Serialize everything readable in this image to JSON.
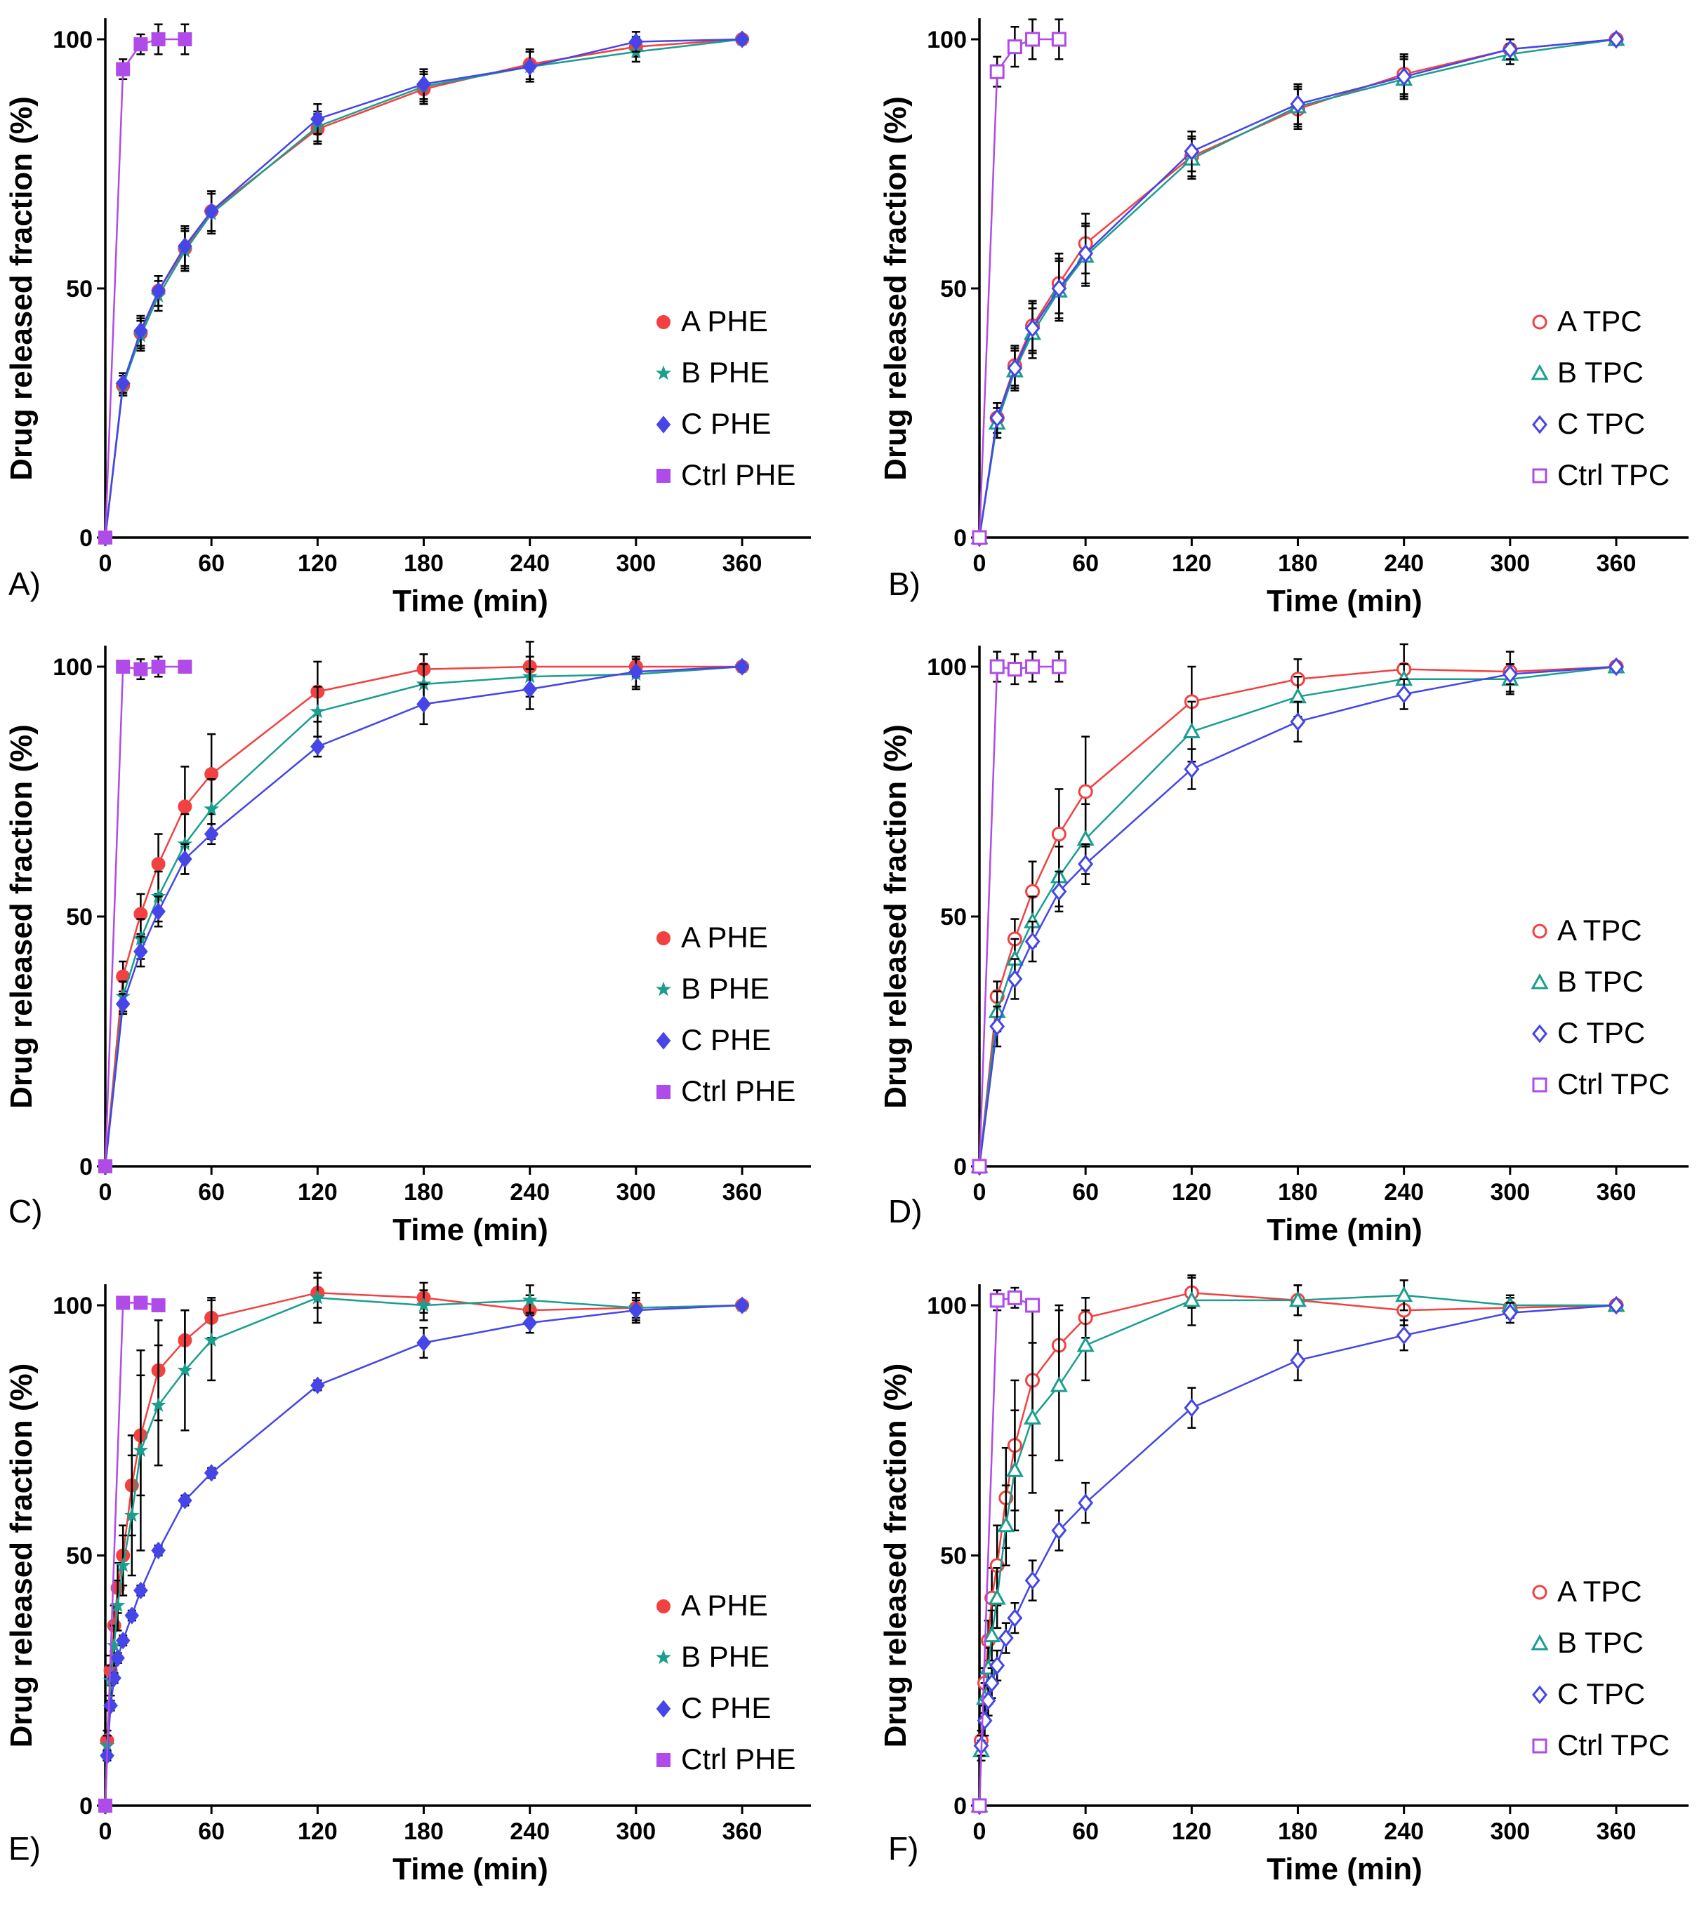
{
  "figure": {
    "colors": {
      "A": "#f24141",
      "B": "#1b9e8e",
      "C": "#4545e8",
      "Ctrl": "#b04ae8",
      "error": "#000000"
    }
  },
  "chart_data": [
    {
      "panel": "A)",
      "type": "line",
      "style": "filled",
      "xlabel": "Time (min)",
      "ylabel": "Drug released fraction (%)",
      "xlim": [
        0,
        400
      ],
      "ylim": [
        0,
        100
      ],
      "xticks": [
        0,
        60,
        120,
        180,
        240,
        300,
        360
      ],
      "yticks": [
        0,
        50,
        100
      ],
      "legend": "bottom-right",
      "series": [
        {
          "key": "A",
          "name": "A PHE",
          "marker": "circle-fill",
          "x": [
            0,
            10,
            20,
            30,
            45,
            60,
            120,
            180,
            240,
            300,
            360
          ],
          "y": [
            0,
            30.5,
            41,
            49.5,
            58,
            65.5,
            82,
            90,
            95,
            98.5,
            100
          ],
          "err": [
            0,
            2,
            3,
            3,
            4,
            4,
            3,
            3,
            3,
            2,
            0
          ]
        },
        {
          "key": "B",
          "name": "B PHE",
          "marker": "star",
          "x": [
            0,
            10,
            20,
            30,
            45,
            60,
            120,
            180,
            240,
            300,
            360
          ],
          "y": [
            0,
            30.5,
            40.5,
            48.5,
            57.5,
            65,
            82.5,
            90.5,
            94.5,
            97.5,
            100
          ],
          "err": [
            0,
            2,
            3,
            3,
            4,
            4,
            3,
            3,
            3,
            2,
            0
          ]
        },
        {
          "key": "C",
          "name": "C PHE",
          "marker": "diamond-fill",
          "x": [
            0,
            10,
            20,
            30,
            45,
            60,
            120,
            180,
            240,
            300,
            360
          ],
          "y": [
            0,
            31,
            41.5,
            49.5,
            58.5,
            65.5,
            84,
            91,
            94.5,
            99.5,
            100
          ],
          "err": [
            0,
            2,
            3,
            3,
            4,
            4,
            3,
            3,
            3,
            2,
            0
          ]
        },
        {
          "key": "Ctrl",
          "name": "Ctrl PHE",
          "marker": "square-fill",
          "x": [
            0,
            10,
            20,
            30,
            45
          ],
          "y": [
            0,
            94,
            99,
            100,
            100
          ],
          "err": [
            0,
            2,
            2,
            3,
            3
          ]
        }
      ]
    },
    {
      "panel": "B)",
      "type": "line",
      "style": "open",
      "xlabel": "Time (min)",
      "ylabel": "Drug released fraction (%)",
      "xlim": [
        0,
        400
      ],
      "ylim": [
        0,
        100
      ],
      "xticks": [
        0,
        60,
        120,
        180,
        240,
        300,
        360
      ],
      "yticks": [
        0,
        50,
        100
      ],
      "legend": "bottom-right",
      "series": [
        {
          "key": "A",
          "name": "A TPC",
          "marker": "circle",
          "x": [
            0,
            10,
            20,
            30,
            45,
            60,
            120,
            180,
            240,
            300,
            360
          ],
          "y": [
            0,
            24,
            34.5,
            42.5,
            51,
            59,
            76.5,
            86,
            93,
            98,
            100
          ],
          "err": [
            0,
            3,
            4,
            5,
            6,
            6,
            4,
            4,
            4,
            2,
            0
          ]
        },
        {
          "key": "B",
          "name": "B TPC",
          "marker": "triangle",
          "x": [
            0,
            10,
            20,
            30,
            45,
            60,
            120,
            180,
            240,
            300,
            360
          ],
          "y": [
            0,
            23,
            33.5,
            41,
            49.5,
            56.5,
            76,
            86.5,
            92,
            97,
            100
          ],
          "err": [
            0,
            3,
            4,
            5,
            6,
            6,
            4,
            4,
            4,
            2,
            0
          ]
        },
        {
          "key": "C",
          "name": "C TPC",
          "marker": "diamond",
          "x": [
            0,
            10,
            20,
            30,
            45,
            60,
            120,
            180,
            240,
            300,
            360
          ],
          "y": [
            0,
            24,
            34,
            42,
            50,
            57,
            77.5,
            87,
            92.5,
            98,
            100
          ],
          "err": [
            0,
            3,
            4,
            5,
            6,
            6,
            4,
            4,
            4,
            2,
            0
          ]
        },
        {
          "key": "Ctrl",
          "name": "Ctrl TPC",
          "marker": "square",
          "x": [
            0,
            10,
            20,
            30,
            45
          ],
          "y": [
            0,
            93.5,
            98.5,
            100,
            100
          ],
          "err": [
            0,
            3,
            4,
            4,
            4
          ]
        }
      ]
    },
    {
      "panel": "C)",
      "type": "line",
      "style": "filled",
      "xlabel": "Time (min)",
      "ylabel": "Drug released fraction (%)",
      "xlim": [
        0,
        400
      ],
      "ylim": [
        0,
        100
      ],
      "xticks": [
        0,
        60,
        120,
        180,
        240,
        300,
        360
      ],
      "yticks": [
        0,
        50,
        100
      ],
      "legend": "bottom-right",
      "series": [
        {
          "key": "A",
          "name": "A PHE",
          "marker": "circle-fill",
          "x": [
            0,
            10,
            20,
            30,
            45,
            60,
            120,
            180,
            240,
            300,
            360
          ],
          "y": [
            0,
            38,
            50.5,
            60.5,
            72,
            78.5,
            95,
            99.5,
            100,
            100,
            100
          ],
          "err": [
            0,
            3,
            4,
            6,
            8,
            8,
            6,
            3,
            5,
            2,
            0
          ]
        },
        {
          "key": "B",
          "name": "B PHE",
          "marker": "star",
          "x": [
            0,
            10,
            20,
            30,
            45,
            60,
            120,
            180,
            240,
            300,
            360
          ],
          "y": [
            0,
            34,
            45.5,
            54,
            64.5,
            71.5,
            91,
            96.5,
            98,
            98.5,
            100
          ],
          "err": [
            0,
            3,
            4,
            5,
            6,
            6,
            5,
            4,
            4,
            3,
            0
          ]
        },
        {
          "key": "C",
          "name": "C PHE",
          "marker": "diamond-fill",
          "x": [
            0,
            10,
            20,
            30,
            45,
            60,
            120,
            180,
            240,
            300,
            360
          ],
          "y": [
            0,
            32.5,
            43,
            51,
            61.5,
            66.5,
            84,
            92.5,
            95.5,
            99,
            100
          ],
          "err": [
            0,
            2,
            3,
            3,
            3,
            2,
            2,
            4,
            4,
            3,
            0
          ]
        },
        {
          "key": "Ctrl",
          "name": "Ctrl PHE",
          "marker": "square-fill",
          "x": [
            0,
            10,
            20,
            30,
            45
          ],
          "y": [
            0,
            100,
            99.5,
            100,
            100
          ],
          "err": [
            0,
            1,
            2,
            2,
            1
          ]
        }
      ]
    },
    {
      "panel": "D)",
      "type": "line",
      "style": "open",
      "xlabel": "Time (min)",
      "ylabel": "Drug released fraction (%)",
      "xlim": [
        0,
        400
      ],
      "ylim": [
        0,
        100
      ],
      "xticks": [
        0,
        60,
        120,
        180,
        240,
        300,
        360
      ],
      "yticks": [
        0,
        50,
        100
      ],
      "legend": "bottom-right",
      "series": [
        {
          "key": "A",
          "name": "A TPC",
          "marker": "circle",
          "x": [
            0,
            10,
            20,
            30,
            45,
            60,
            120,
            180,
            240,
            300,
            360
          ],
          "y": [
            0,
            34,
            45.5,
            55,
            66.5,
            75,
            93,
            97.5,
            99.5,
            99,
            100
          ],
          "err": [
            0,
            3,
            4,
            6,
            9,
            11,
            7,
            4,
            5,
            4,
            0
          ]
        },
        {
          "key": "B",
          "name": "B TPC",
          "marker": "triangle",
          "x": [
            0,
            10,
            20,
            30,
            45,
            60,
            120,
            180,
            240,
            300,
            360
          ],
          "y": [
            0,
            31,
            41.5,
            49,
            58,
            65.5,
            87,
            94,
            97.5,
            97.5,
            100
          ],
          "err": [
            0,
            4,
            4,
            5,
            6,
            7,
            6,
            4,
            3,
            3,
            0
          ]
        },
        {
          "key": "C",
          "name": "C TPC",
          "marker": "diamond",
          "x": [
            0,
            10,
            20,
            30,
            45,
            60,
            120,
            180,
            240,
            300,
            360
          ],
          "y": [
            0,
            28,
            37.5,
            45,
            55,
            60.5,
            79.5,
            89,
            94.5,
            98.5,
            100
          ],
          "err": [
            0,
            4,
            4,
            4,
            4,
            4,
            4,
            4,
            3,
            2,
            0
          ]
        },
        {
          "key": "Ctrl",
          "name": "Ctrl TPC",
          "marker": "square",
          "x": [
            0,
            10,
            20,
            30,
            45
          ],
          "y": [
            0,
            100,
            99.5,
            100,
            100
          ],
          "err": [
            0,
            3,
            3,
            3,
            3
          ]
        }
      ]
    },
    {
      "panel": "E)",
      "type": "line",
      "style": "filled",
      "xlabel": "Time (min)",
      "ylabel": "Drug released fraction (%)",
      "xlim": [
        0,
        400
      ],
      "ylim": [
        0,
        100
      ],
      "xticks": [
        0,
        60,
        120,
        180,
        240,
        300,
        360
      ],
      "yticks": [
        0,
        50,
        100
      ],
      "legend": "bottom-right",
      "series": [
        {
          "key": "A",
          "name": "A PHE",
          "marker": "circle-fill",
          "x": [
            0,
            1,
            3,
            5,
            7,
            10,
            15,
            20,
            30,
            45,
            60,
            120,
            180,
            240,
            300,
            360
          ],
          "y": [
            0,
            13,
            27,
            36,
            43.5,
            50,
            64,
            74,
            87,
            93,
            97.5,
            102.5,
            101.5,
            99,
            99.5,
            100
          ],
          "err": [
            0,
            2,
            3,
            4,
            5,
            6,
            10,
            12,
            10,
            6,
            4,
            3,
            3,
            3,
            2,
            0
          ]
        },
        {
          "key": "B",
          "name": "B PHE",
          "marker": "star",
          "x": [
            0,
            1,
            3,
            5,
            7,
            10,
            15,
            20,
            30,
            45,
            60,
            120,
            180,
            240,
            300,
            360
          ],
          "y": [
            0,
            12,
            25,
            32,
            40,
            48,
            58,
            71,
            80,
            87,
            93,
            101.5,
            100,
            101,
            99.5,
            100
          ],
          "err": [
            0,
            2,
            3,
            4,
            5,
            6,
            12,
            20,
            12,
            12,
            8,
            5,
            3,
            3,
            3,
            0
          ]
        },
        {
          "key": "C",
          "name": "C PHE",
          "marker": "diamond-fill",
          "x": [
            0,
            1,
            3,
            5,
            7,
            10,
            15,
            20,
            30,
            45,
            60,
            120,
            180,
            240,
            300,
            360
          ],
          "y": [
            0,
            10,
            20,
            25.5,
            29.5,
            33,
            38,
            43,
            51,
            61,
            66.5,
            84,
            92.5,
            96.5,
            99,
            100
          ],
          "err": [
            0,
            1,
            1,
            1,
            1,
            1,
            1,
            1,
            1,
            1,
            1,
            1,
            3,
            2,
            2,
            0
          ]
        },
        {
          "key": "Ctrl",
          "name": "Ctrl PHE",
          "marker": "square-fill",
          "x": [
            0,
            10,
            20,
            30
          ],
          "y": [
            0,
            100.5,
            100.5,
            100
          ],
          "err": [
            0,
            1,
            1,
            1
          ]
        }
      ]
    },
    {
      "panel": "F)",
      "type": "line",
      "style": "open",
      "xlabel": "Time (min)",
      "ylabel": "Drug released fraction (%)",
      "xlim": [
        0,
        400
      ],
      "ylim": [
        0,
        100
      ],
      "xticks": [
        0,
        60,
        120,
        180,
        240,
        300,
        360
      ],
      "yticks": [
        0,
        50,
        100
      ],
      "legend": "bottom-right",
      "series": [
        {
          "key": "A",
          "name": "A TPC",
          "marker": "circle",
          "x": [
            0,
            1,
            3,
            5,
            7,
            10,
            15,
            20,
            30,
            45,
            60,
            120,
            180,
            240,
            300,
            360
          ],
          "y": [
            0,
            13,
            24.5,
            33,
            41.5,
            48,
            61.5,
            72,
            85,
            92,
            97.5,
            102.5,
            101,
            99,
            99.5,
            100
          ],
          "err": [
            0,
            2,
            3,
            4,
            6,
            8,
            10,
            13,
            15,
            8,
            4,
            3,
            3,
            3,
            2,
            0
          ]
        },
        {
          "key": "B",
          "name": "B TPC",
          "marker": "triangle",
          "x": [
            0,
            1,
            3,
            5,
            7,
            10,
            15,
            20,
            30,
            45,
            60,
            120,
            180,
            240,
            300,
            360
          ],
          "y": [
            0,
            11,
            21.5,
            27.5,
            34,
            41.5,
            56,
            67,
            77.5,
            84,
            92,
            101,
            101,
            102,
            100,
            100
          ],
          "err": [
            0,
            2,
            3,
            4,
            5,
            6,
            8,
            12,
            15,
            15,
            7,
            5,
            3,
            3,
            2,
            0
          ]
        },
        {
          "key": "C",
          "name": "C TPC",
          "marker": "diamond",
          "x": [
            0,
            1,
            3,
            5,
            7,
            10,
            15,
            20,
            30,
            45,
            60,
            120,
            180,
            240,
            300,
            360
          ],
          "y": [
            0,
            12,
            17,
            21,
            24.5,
            28,
            33.5,
            37.5,
            45,
            55,
            60.5,
            79.5,
            89,
            94,
            98.5,
            100
          ],
          "err": [
            0,
            2,
            3,
            3,
            3,
            3,
            3,
            3,
            4,
            4,
            4,
            4,
            4,
            3,
            2,
            0
          ]
        },
        {
          "key": "Ctrl",
          "name": "Ctrl TPC",
          "marker": "square",
          "x": [
            0,
            10,
            20,
            30
          ],
          "y": [
            0,
            101,
            101.5,
            100
          ],
          "err": [
            0,
            2,
            2,
            1
          ]
        }
      ]
    }
  ]
}
